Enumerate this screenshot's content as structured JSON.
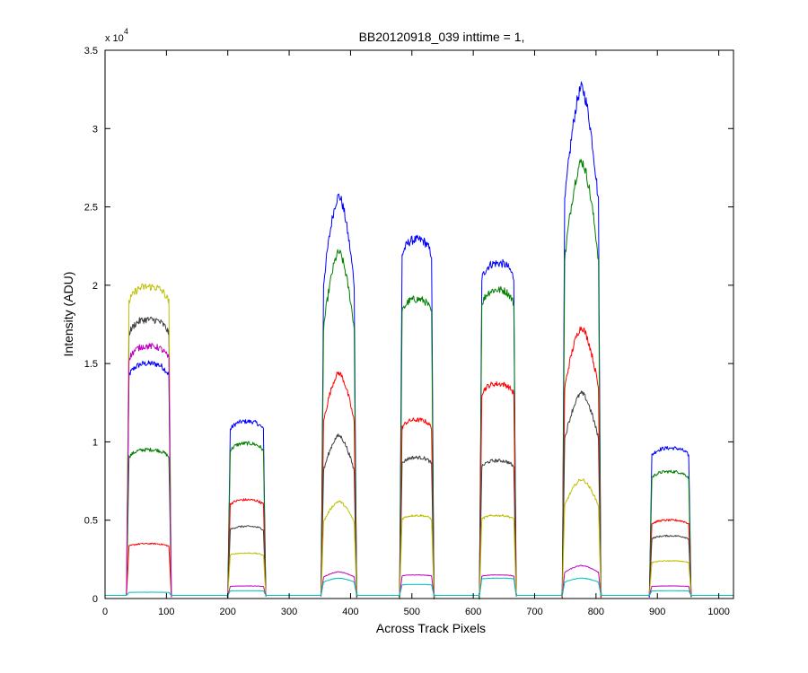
{
  "chart_data": {
    "type": "line",
    "title": "BB20120918_039 inttime = 1,",
    "xlabel": "Across Track Pixels",
    "ylabel": "Intensity (ADU)",
    "xlim": [
      0,
      1024
    ],
    "ylim": [
      0,
      35000
    ],
    "xticks": [
      0,
      100,
      200,
      300,
      400,
      500,
      600,
      700,
      800,
      900,
      1000
    ],
    "yticks": [
      0,
      0.5,
      1,
      1.5,
      2,
      2.5,
      3,
      3.5
    ],
    "yticks_labels": [
      "0",
      "0.5",
      "1",
      "1.5",
      "2",
      "2.5",
      "3",
      "3.5"
    ],
    "y_exponent_label": "x 10",
    "y_exponent_power": "4",
    "grid": false,
    "baseline": 200,
    "segments": [
      {
        "x": [
          35,
          108
        ],
        "shape": "flat"
      },
      {
        "x": [
          200,
          262
        ],
        "shape": "flat"
      },
      {
        "x": [
          352,
          410
        ],
        "shape": "peak"
      },
      {
        "x": [
          480,
          536
        ],
        "shape": "flat"
      },
      {
        "x": [
          610,
          670
        ],
        "shape": "flat"
      },
      {
        "x": [
          745,
          808
        ],
        "shape": "peak"
      },
      {
        "x": [
          887,
          955
        ],
        "shape": "flat"
      }
    ],
    "series": [
      {
        "name": "",
        "color": "#0000ff",
        "levels": [
          15000,
          11300,
          25700,
          22900,
          21400,
          32600,
          9600
        ]
      },
      {
        "name": "",
        "color": "#007f00",
        "levels": [
          9500,
          9900,
          22100,
          19100,
          19700,
          27900,
          8100
        ]
      },
      {
        "name": "",
        "color": "#ff0000",
        "levels": [
          3500,
          6300,
          14400,
          11400,
          13700,
          17300,
          5000
        ]
      },
      {
        "name": "",
        "color": "#3f3f3f",
        "levels": [
          17800,
          4600,
          10400,
          9000,
          8800,
          13100,
          4000
        ]
      },
      {
        "name": "",
        "color": "#bfbf00",
        "levels": [
          19900,
          2900,
          6200,
          5300,
          5300,
          7600,
          2400
        ]
      },
      {
        "name": "",
        "color": "#bf00bf",
        "levels": [
          16100,
          800,
          1700,
          1500,
          1500,
          2100,
          800
        ]
      },
      {
        "name": "",
        "color": "#00bfbf",
        "levels": [
          400,
          500,
          1300,
          900,
          1300,
          1300,
          500
        ]
      }
    ]
  }
}
